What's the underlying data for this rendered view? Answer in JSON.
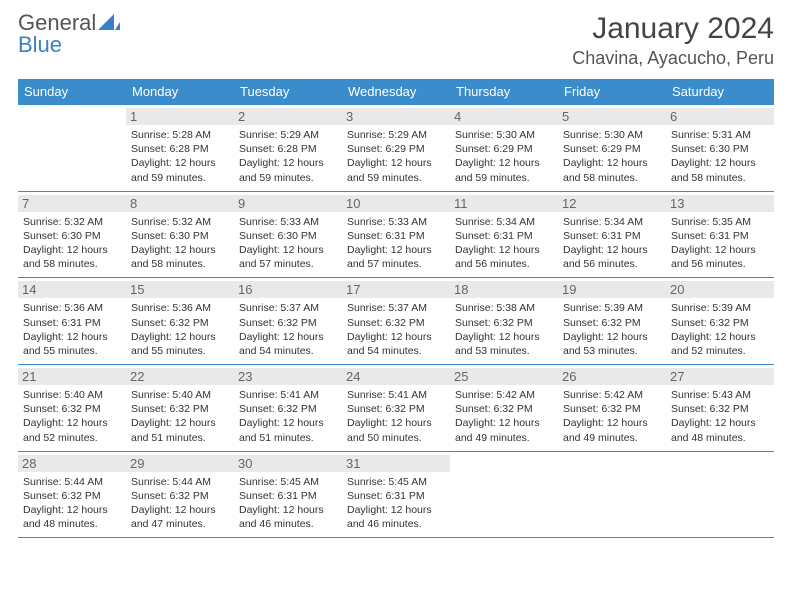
{
  "logo": {
    "text_general": "General",
    "text_blue": "Blue"
  },
  "title": "January 2024",
  "location": "Chavina, Ayacucho, Peru",
  "colors": {
    "header_bg": "#3b8ccb",
    "header_text": "#ffffff",
    "daynum_bg": "#e9e9e9",
    "daynum_text": "#666666",
    "body_text": "#333333",
    "rule": "#3b8ccb",
    "logo_gray": "#555555",
    "logo_blue": "#3b7fc4"
  },
  "day_headers": [
    "Sunday",
    "Monday",
    "Tuesday",
    "Wednesday",
    "Thursday",
    "Friday",
    "Saturday"
  ],
  "weeks": [
    [
      {
        "num": "",
        "sunrise": "",
        "sunset": "",
        "daylight": ""
      },
      {
        "num": "1",
        "sunrise": "5:28 AM",
        "sunset": "6:28 PM",
        "daylight": "12 hours and 59 minutes."
      },
      {
        "num": "2",
        "sunrise": "5:29 AM",
        "sunset": "6:28 PM",
        "daylight": "12 hours and 59 minutes."
      },
      {
        "num": "3",
        "sunrise": "5:29 AM",
        "sunset": "6:29 PM",
        "daylight": "12 hours and 59 minutes."
      },
      {
        "num": "4",
        "sunrise": "5:30 AM",
        "sunset": "6:29 PM",
        "daylight": "12 hours and 59 minutes."
      },
      {
        "num": "5",
        "sunrise": "5:30 AM",
        "sunset": "6:29 PM",
        "daylight": "12 hours and 58 minutes."
      },
      {
        "num": "6",
        "sunrise": "5:31 AM",
        "sunset": "6:30 PM",
        "daylight": "12 hours and 58 minutes."
      }
    ],
    [
      {
        "num": "7",
        "sunrise": "5:32 AM",
        "sunset": "6:30 PM",
        "daylight": "12 hours and 58 minutes."
      },
      {
        "num": "8",
        "sunrise": "5:32 AM",
        "sunset": "6:30 PM",
        "daylight": "12 hours and 58 minutes."
      },
      {
        "num": "9",
        "sunrise": "5:33 AM",
        "sunset": "6:30 PM",
        "daylight": "12 hours and 57 minutes."
      },
      {
        "num": "10",
        "sunrise": "5:33 AM",
        "sunset": "6:31 PM",
        "daylight": "12 hours and 57 minutes."
      },
      {
        "num": "11",
        "sunrise": "5:34 AM",
        "sunset": "6:31 PM",
        "daylight": "12 hours and 56 minutes."
      },
      {
        "num": "12",
        "sunrise": "5:34 AM",
        "sunset": "6:31 PM",
        "daylight": "12 hours and 56 minutes."
      },
      {
        "num": "13",
        "sunrise": "5:35 AM",
        "sunset": "6:31 PM",
        "daylight": "12 hours and 56 minutes."
      }
    ],
    [
      {
        "num": "14",
        "sunrise": "5:36 AM",
        "sunset": "6:31 PM",
        "daylight": "12 hours and 55 minutes."
      },
      {
        "num": "15",
        "sunrise": "5:36 AM",
        "sunset": "6:32 PM",
        "daylight": "12 hours and 55 minutes."
      },
      {
        "num": "16",
        "sunrise": "5:37 AM",
        "sunset": "6:32 PM",
        "daylight": "12 hours and 54 minutes."
      },
      {
        "num": "17",
        "sunrise": "5:37 AM",
        "sunset": "6:32 PM",
        "daylight": "12 hours and 54 minutes."
      },
      {
        "num": "18",
        "sunrise": "5:38 AM",
        "sunset": "6:32 PM",
        "daylight": "12 hours and 53 minutes."
      },
      {
        "num": "19",
        "sunrise": "5:39 AM",
        "sunset": "6:32 PM",
        "daylight": "12 hours and 53 minutes."
      },
      {
        "num": "20",
        "sunrise": "5:39 AM",
        "sunset": "6:32 PM",
        "daylight": "12 hours and 52 minutes."
      }
    ],
    [
      {
        "num": "21",
        "sunrise": "5:40 AM",
        "sunset": "6:32 PM",
        "daylight": "12 hours and 52 minutes."
      },
      {
        "num": "22",
        "sunrise": "5:40 AM",
        "sunset": "6:32 PM",
        "daylight": "12 hours and 51 minutes."
      },
      {
        "num": "23",
        "sunrise": "5:41 AM",
        "sunset": "6:32 PM",
        "daylight": "12 hours and 51 minutes."
      },
      {
        "num": "24",
        "sunrise": "5:41 AM",
        "sunset": "6:32 PM",
        "daylight": "12 hours and 50 minutes."
      },
      {
        "num": "25",
        "sunrise": "5:42 AM",
        "sunset": "6:32 PM",
        "daylight": "12 hours and 49 minutes."
      },
      {
        "num": "26",
        "sunrise": "5:42 AM",
        "sunset": "6:32 PM",
        "daylight": "12 hours and 49 minutes."
      },
      {
        "num": "27",
        "sunrise": "5:43 AM",
        "sunset": "6:32 PM",
        "daylight": "12 hours and 48 minutes."
      }
    ],
    [
      {
        "num": "28",
        "sunrise": "5:44 AM",
        "sunset": "6:32 PM",
        "daylight": "12 hours and 48 minutes."
      },
      {
        "num": "29",
        "sunrise": "5:44 AM",
        "sunset": "6:32 PM",
        "daylight": "12 hours and 47 minutes."
      },
      {
        "num": "30",
        "sunrise": "5:45 AM",
        "sunset": "6:31 PM",
        "daylight": "12 hours and 46 minutes."
      },
      {
        "num": "31",
        "sunrise": "5:45 AM",
        "sunset": "6:31 PM",
        "daylight": "12 hours and 46 minutes."
      },
      {
        "num": "",
        "sunrise": "",
        "sunset": "",
        "daylight": ""
      },
      {
        "num": "",
        "sunrise": "",
        "sunset": "",
        "daylight": ""
      },
      {
        "num": "",
        "sunrise": "",
        "sunset": "",
        "daylight": ""
      }
    ]
  ],
  "labels": {
    "sunrise": "Sunrise: ",
    "sunset": "Sunset: ",
    "daylight": "Daylight: "
  }
}
